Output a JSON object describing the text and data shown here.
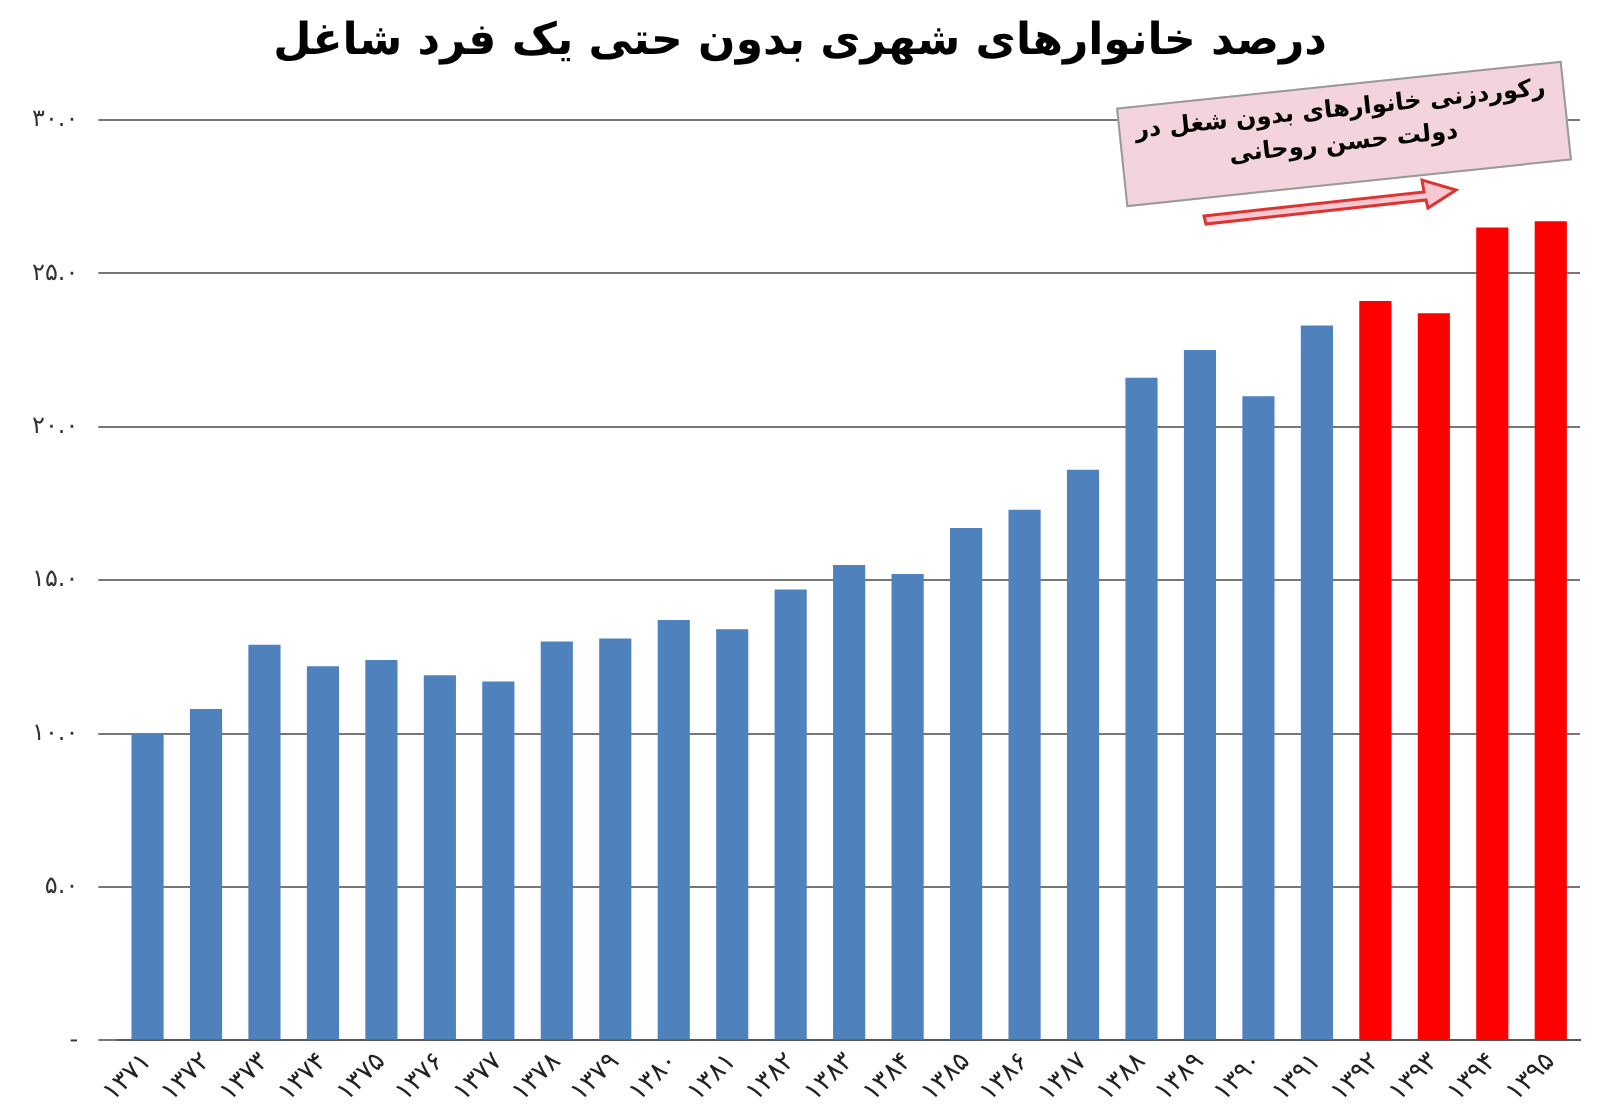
{
  "chart_data": {
    "type": "bar",
    "title": "درصد خانوارهای شهری بدون حتی یک فرد شاغل",
    "categories": [
      "۱۳۷۱",
      "۱۳۷۲",
      "۱۳۷۳",
      "۱۳۷۴",
      "۱۳۷۵",
      "۱۳۷۶",
      "۱۳۷۷",
      "۱۳۷۸",
      "۱۳۷۹",
      "۱۳۸۰",
      "۱۳۸۱",
      "۱۳۸۲",
      "۱۳۸۳",
      "۱۳۸۴",
      "۱۳۸۵",
      "۱۳۸۶",
      "۱۳۸۷",
      "۱۳۸۸",
      "۱۳۸۹",
      "۱۳۹۰",
      "۱۳۹۱",
      "۱۳۹۲",
      "۱۳۹۳",
      "۱۳۹۴",
      "۱۳۹۵"
    ],
    "values": [
      10.0,
      10.8,
      12.9,
      12.2,
      12.4,
      11.9,
      11.7,
      13.0,
      13.1,
      13.7,
      13.4,
      14.7,
      15.5,
      15.2,
      16.7,
      17.3,
      18.6,
      21.6,
      22.5,
      21.0,
      23.3,
      24.1,
      23.7,
      26.5,
      26.7
    ],
    "colors": [
      "#4f81bd",
      "#4f81bd",
      "#4f81bd",
      "#4f81bd",
      "#4f81bd",
      "#4f81bd",
      "#4f81bd",
      "#4f81bd",
      "#4f81bd",
      "#4f81bd",
      "#4f81bd",
      "#4f81bd",
      "#4f81bd",
      "#4f81bd",
      "#4f81bd",
      "#4f81bd",
      "#4f81bd",
      "#4f81bd",
      "#4f81bd",
      "#4f81bd",
      "#4f81bd",
      "#ff0000",
      "#ff0000",
      "#ff0000",
      "#ff0000"
    ],
    "ylim": [
      0,
      30
    ],
    "yticks": [
      {
        "value": 0,
        "label": "-"
      },
      {
        "value": 5,
        "label": "۵.۰"
      },
      {
        "value": 10,
        "label": "۱۰.۰"
      },
      {
        "value": 15,
        "label": "۱۵.۰"
      },
      {
        "value": 20,
        "label": "۲۰.۰"
      },
      {
        "value": 25,
        "label": "۲۵.۰"
      },
      {
        "value": 30,
        "label": "۳۰.۰"
      }
    ],
    "grid": "y",
    "legend": false,
    "annotations": [
      "رکوردزنی خانوارهای بدون شغل در دولت حسن روحانی"
    ]
  }
}
